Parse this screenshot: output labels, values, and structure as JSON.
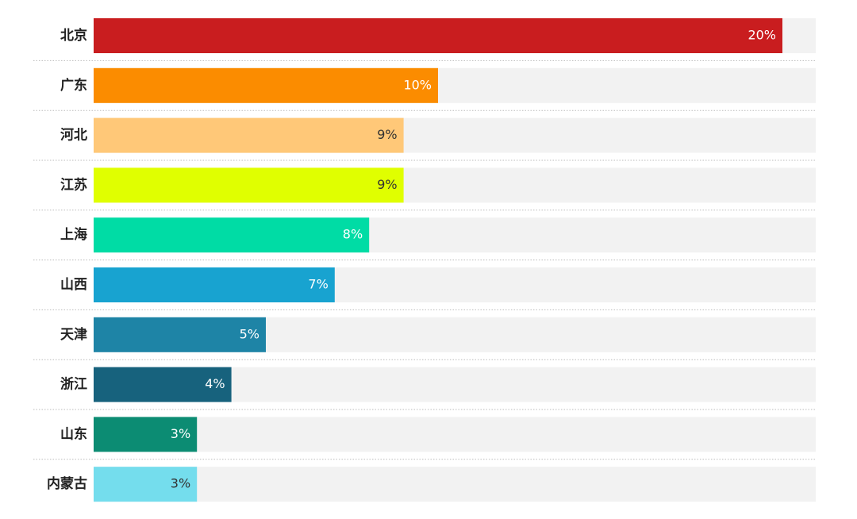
{
  "chart_data": {
    "type": "hbar",
    "categories": [
      "北京",
      "广东",
      "河北",
      "江苏",
      "上海",
      "山西",
      "天津",
      "浙江",
      "山东",
      "内蒙古"
    ],
    "values": [
      20,
      10,
      9,
      9,
      8,
      7,
      5,
      4,
      3,
      3
    ],
    "value_labels": [
      "20%",
      "10%",
      "9%",
      "9%",
      "8%",
      "7%",
      "5%",
      "4%",
      "3%",
      "3%"
    ],
    "colors": [
      "#c91d1f",
      "#fb8c00",
      "#ffc878",
      "#e0ff00",
      "#00dca5",
      "#18a3d0",
      "#1e84a6",
      "#17627d",
      "#0c8c73",
      "#74dded"
    ]
  }
}
